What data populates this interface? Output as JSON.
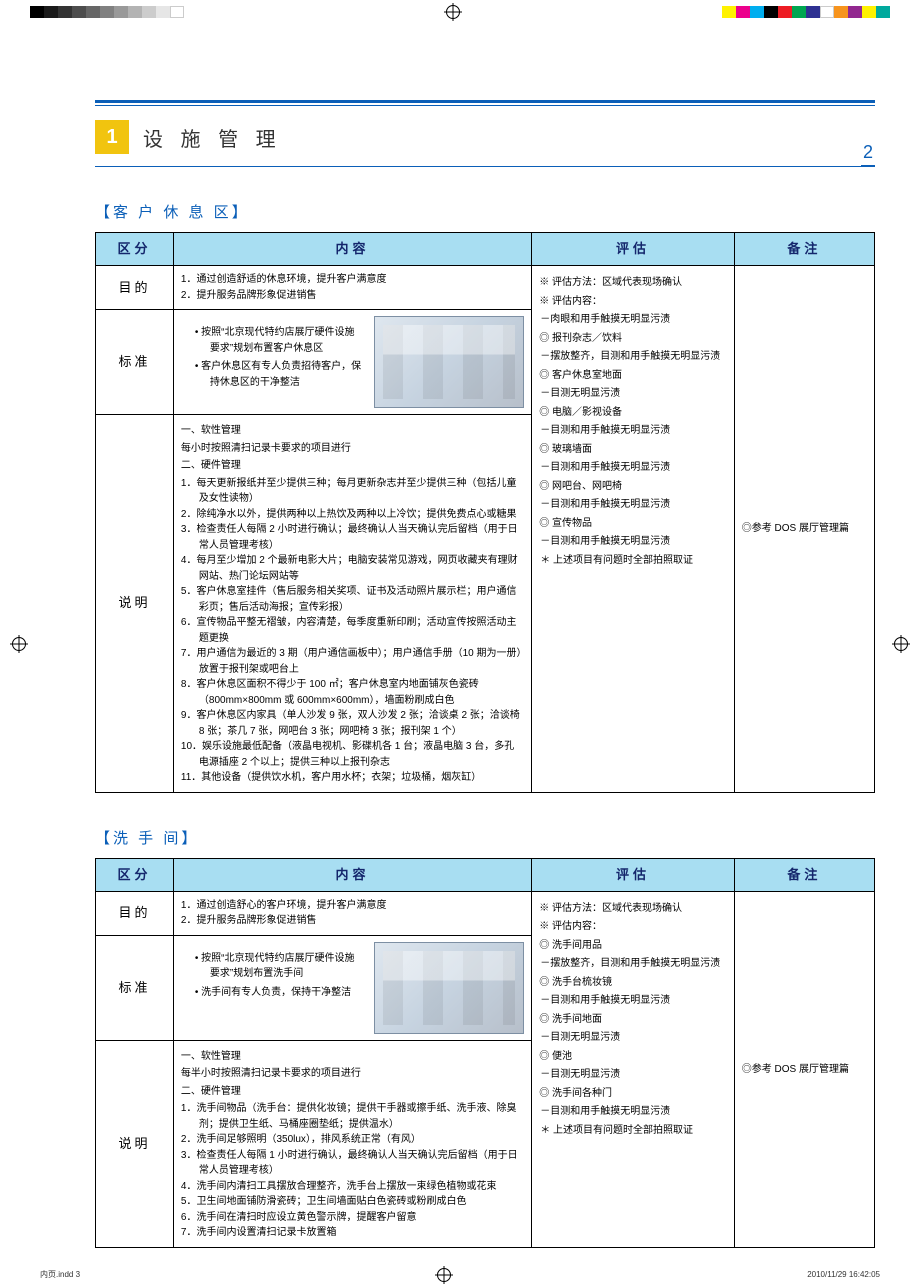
{
  "print": {
    "footer_left": "内页.indd   3",
    "footer_right": "2010/11/29   16:42:05",
    "gray_strip": [
      "#000000",
      "#1a1a1a",
      "#333333",
      "#4d4d4d",
      "#666666",
      "#808080",
      "#999999",
      "#b3b3b3",
      "#cccccc",
      "#e6e6e6",
      "#ffffff"
    ],
    "color_strip": [
      "#fff200",
      "#ec008c",
      "#00aeef",
      "#000000",
      "#ed1c24",
      "#00a651",
      "#2e3192",
      "#ffffff",
      "#f7941d",
      "#92278f",
      "#fff200",
      "#00a99d"
    ],
    "reg_mark_color": "#000000"
  },
  "page_number": "2",
  "chapter": {
    "number": "1",
    "title": "设 施 管 理"
  },
  "columns": {
    "c1_pct": 10,
    "c2_pct": 46,
    "c3_pct": 26,
    "c4_pct": 18
  },
  "headers": {
    "c1": "区分",
    "c2": "内容",
    "c3": "评估",
    "c4": "备注"
  },
  "rowlabels": {
    "purpose": "目的",
    "standard": "标准",
    "desc": "说明"
  },
  "section1": {
    "title_inner": "客 户 休 息 区",
    "purpose": [
      "1．通过创造舒适的休息环境，提升客户满意度",
      "2．提升服务品牌形象促进销售"
    ],
    "standard": [
      "按照“北京现代特约店展厅硬件设施要求”规划布置客户休息区",
      "客户休息区有专人负责招待客户，保持休息区的干净整洁"
    ],
    "desc_head1": "一、软性管理",
    "desc_line1": "每小时按照清扫记录卡要求的项目进行",
    "desc_head2": "二、硬件管理",
    "desc_items": [
      "1．每天更新报纸并至少提供三种；每月更新杂志并至少提供三种（包括儿童及女性读物）",
      "2．除纯净水以外，提供两种以上热饮及两种以上冷饮；提供免费点心或糖果",
      "3．检查责任人每隔 2 小时进行确认；最终确认人当天确认完后留档（用于日常人员管理考核）",
      "4．每月至少增加 2 个最新电影大片；电脑安装常见游戏，网页收藏夹有理财网站、热门论坛网站等",
      "5．客户休息室挂件（售后服务相关奖项、证书及活动照片展示栏；用户通信彩页；售后活动海报；宣传彩报）",
      "6．宣传物品平整无褶皱，内容清楚，每季度重新印刷；活动宣传按照活动主题更换",
      "7．用户通信为最近的 3 期（用户通信画板中）；用户通信手册（10 期为一册）放置于报刊架或吧台上",
      "8．客户休息区面积不得少于 100 ㎡；客户休息室内地面铺灰色瓷砖（800mm×800mm 或 600mm×600mm），墙面粉刷成白色",
      "9．客户休息区内家具（单人沙发 9 张，双人沙发 2 张；洽谈桌 2 张；洽谈椅 8 张；茶几 7 张，网吧台 3 张；网吧椅 3 张；报刊架 1 个）",
      "10．娱乐设施最低配备（液晶电视机、影碟机各 1 台；液晶电脑  3 台，多孔电源插座 2 个以上；提供三种以上报刊杂志",
      "11．其他设备（提供饮水机，客户用水杯；衣架；垃圾桶，烟灰缸）"
    ],
    "eval": [
      "※ 评估方法：区域代表现场确认",
      "※ 评估内容：",
      "－肉眼和用手触摸无明显污渍",
      "◎ 报刊杂志／饮料",
      "－摆放整齐，目测和用手触摸无明显污渍",
      "◎ 客户休息室地面",
      "－目测无明显污渍",
      "◎ 电脑／影视设备",
      "－目测和用手触摸无明显污渍",
      "◎ 玻璃墙面",
      "－目测和用手触摸无明显污渍",
      "◎ 网吧台、网吧椅",
      "－目测和用手触摸无明显污渍",
      "◎  宣传物品",
      "－目测和用手触摸无明显污渍",
      "＊ 上述项目有问题时全部拍照取证"
    ],
    "notes": "◎参考 DOS 展厅管理篇"
  },
  "section2": {
    "title_inner": "洗 手 间",
    "purpose": [
      "1．通过创造舒心的客户环境，提升客户满意度",
      "2．提升服务品牌形象促进销售"
    ],
    "standard": [
      "按照“北京现代特约店展厅硬件设施要求”规划布置洗手间",
      "洗手间有专人负责，保持干净整洁"
    ],
    "desc_head1": "一、软性管理",
    "desc_line1": "每半小时按照清扫记录卡要求的项目进行",
    "desc_head2": "二、硬件管理",
    "desc_items": [
      "1．洗手间物品（洗手台：提供化妆镜；提供干手器或擦手纸、洗手液、除臭剂；提供卫生纸、马桶座圈垫纸；提供温水）",
      "2．洗手间足够照明（350lux），排风系统正常（有风）",
      "3．检查责任人每隔 1 小时进行确认，最终确认人当天确认完后留档（用于日常人员管理考核）",
      "4．洗手间内清扫工具摆放合理整齐，洗手台上摆放一束绿色植物或花束",
      "5．卫生间地面铺防滑瓷砖；卫生间墙面贴白色瓷砖或粉刷成白色",
      "6．洗手间在清扫时应设立黄色警示牌，提醒客户留意",
      "7．洗手间内设置清扫记录卡放置箱"
    ],
    "eval": [
      "※ 评估方法：区域代表现场确认",
      "※ 评估内容：",
      "◎ 洗手间用品",
      "－摆放整齐，目测和用手触摸无明显污渍",
      "◎ 洗手台梳妆镜",
      "－目测和用手触摸无明显污渍",
      "◎ 洗手间地面",
      "－目测无明显污渍",
      "◎ 便池",
      "－目测无明显污渍",
      "◎ 洗手间各种门",
      "－目测和用手触摸无明显污渍",
      "＊ 上述项目有问题时全部拍照取证"
    ],
    "notes": "◎参考 DOS 展厅管理篇"
  },
  "colors": {
    "accent_blue": "#0b5fb8",
    "header_bg": "#a8def2",
    "header_text": "#14266c",
    "badge_bg": "#f1c40f",
    "badge_text": "#ffffff",
    "border": "#000000",
    "body_text": "#000000"
  },
  "typography": {
    "body_pt": 10,
    "header_pt": 13,
    "chapter_pt": 20,
    "section_pt": 15
  }
}
